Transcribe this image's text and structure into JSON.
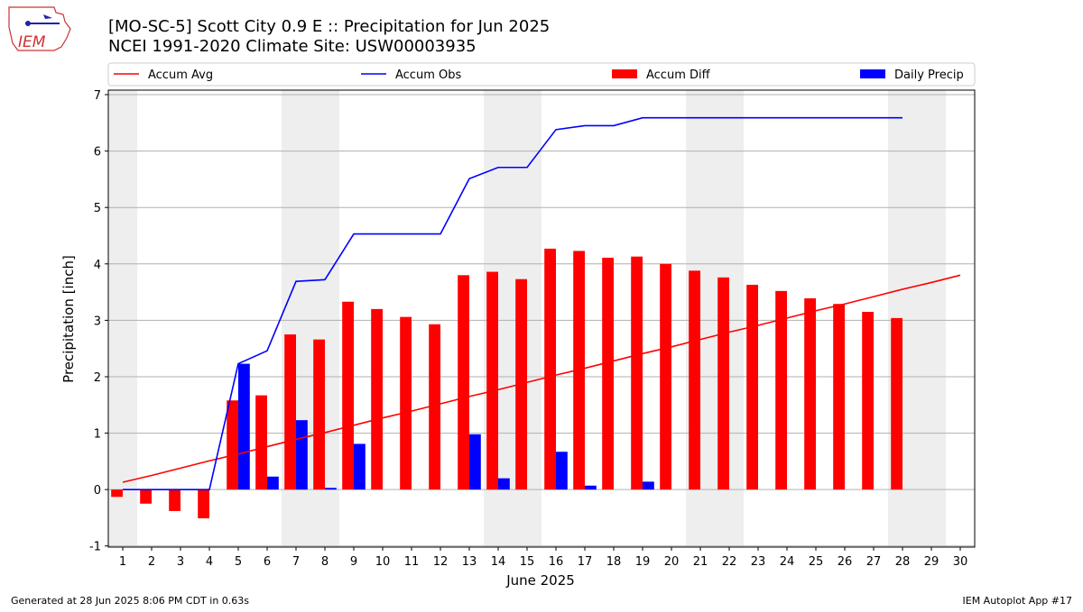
{
  "logo": "IEM",
  "footer": {
    "left": "Generated at 28 Jun 2025 8:06 PM CDT in 0.63s",
    "right": "IEM Autoplot App #17"
  },
  "chart_data": {
    "type": "bar",
    "title": "[MO-SC-5] Scott City 0.9 E :: Precipitation for Jun 2025",
    "subtitle": "NCEI 1991-2020 Climate Site: USW00003935",
    "x_label": "June 2025",
    "y_label": "Precipitation [inch]",
    "x": [
      1,
      2,
      3,
      4,
      5,
      6,
      7,
      8,
      9,
      10,
      11,
      12,
      13,
      14,
      15,
      16,
      17,
      18,
      19,
      20,
      21,
      22,
      23,
      24,
      25,
      26,
      27,
      28,
      29,
      30
    ],
    "xlim": [
      0.5,
      30.5
    ],
    "xticks": [
      1,
      2,
      3,
      4,
      5,
      6,
      7,
      8,
      9,
      10,
      11,
      12,
      13,
      14,
      15,
      16,
      17,
      18,
      19,
      20,
      21,
      22,
      23,
      24,
      25,
      26,
      27,
      28,
      29,
      30
    ],
    "ylim": [
      -1.02,
      7.08
    ],
    "yticks": [
      -1,
      0,
      1,
      2,
      3,
      4,
      5,
      6,
      7
    ],
    "grid": true,
    "legend": "top",
    "series": [
      {
        "name": "Accum Avg",
        "type": "line",
        "color": "#ff0000",
        "values": [
          0.13,
          0.25,
          0.38,
          0.51,
          0.63,
          0.76,
          0.89,
          1.01,
          1.14,
          1.27,
          1.39,
          1.52,
          1.65,
          1.77,
          1.9,
          2.03,
          2.15,
          2.28,
          2.41,
          2.53,
          2.66,
          2.79,
          2.91,
          3.04,
          3.17,
          3.29,
          3.42,
          3.55,
          3.67,
          3.8
        ]
      },
      {
        "name": "Accum Obs",
        "type": "line",
        "color": "#0000ff",
        "values": [
          0,
          0,
          0,
          0,
          2.23,
          2.46,
          3.69,
          3.72,
          4.53,
          4.53,
          4.53,
          4.53,
          5.51,
          5.71,
          5.71,
          6.38,
          6.45,
          6.45,
          6.59,
          6.59,
          6.59,
          6.59,
          6.59,
          6.59,
          6.59,
          6.59,
          6.59,
          6.59,
          null,
          null
        ]
      },
      {
        "name": "Accum Diff",
        "type": "bar",
        "color": "#ff0000",
        "values": [
          -0.13,
          -0.25,
          -0.38,
          -0.51,
          1.58,
          1.67,
          2.75,
          2.66,
          3.33,
          3.2,
          3.06,
          2.93,
          3.8,
          3.86,
          3.73,
          4.27,
          4.23,
          4.11,
          4.13,
          4.0,
          3.88,
          3.76,
          3.63,
          3.52,
          3.39,
          3.29,
          3.15,
          3.04,
          null,
          null
        ]
      },
      {
        "name": "Daily Precip",
        "type": "bar",
        "color": "#0000ff",
        "values": [
          0,
          0,
          0,
          0,
          2.23,
          0.23,
          1.23,
          0.03,
          0.81,
          0,
          0,
          0,
          0.98,
          0.2,
          0,
          0.67,
          0.07,
          0,
          0.14,
          0,
          0,
          0,
          0,
          0,
          0,
          0,
          0,
          0,
          null,
          null
        ]
      }
    ]
  }
}
